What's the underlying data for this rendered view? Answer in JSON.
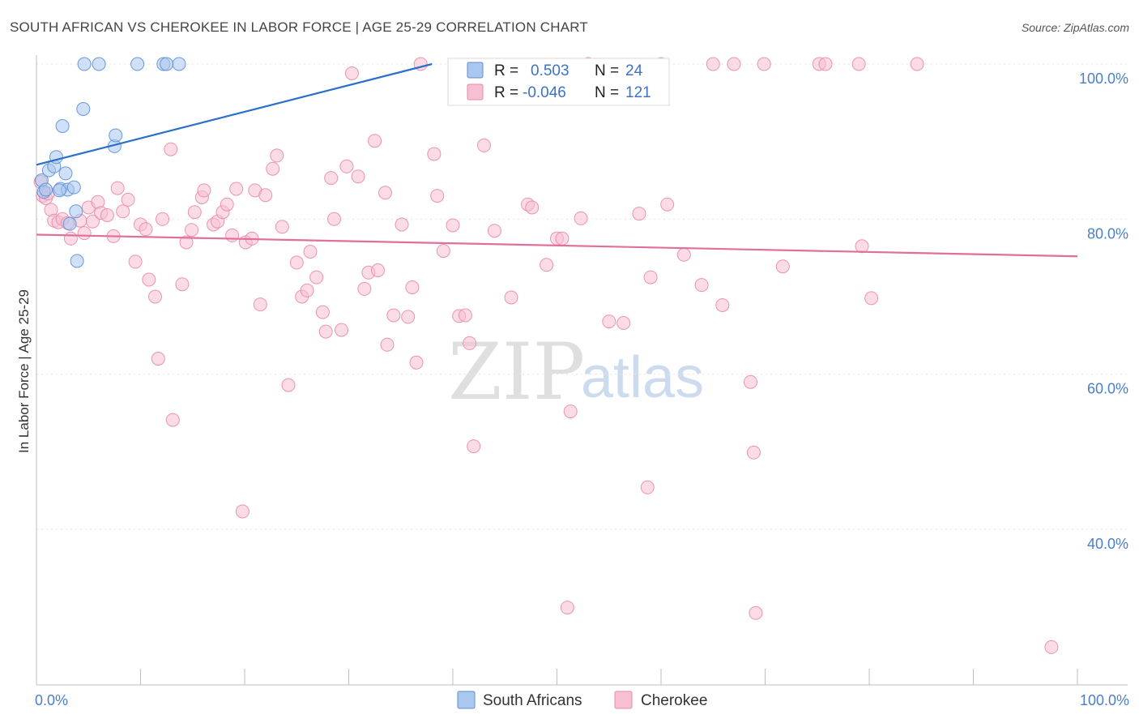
{
  "title": "SOUTH AFRICAN VS CHEROKEE IN LABOR FORCE | AGE 25-29 CORRELATION CHART",
  "source": "Source: ZipAtlas.com",
  "watermark": {
    "zip": "ZIP",
    "atlas": "atlas"
  },
  "chart_data": {
    "type": "scatter",
    "title": "SOUTH AFRICAN VS CHEROKEE IN LABOR FORCE | AGE 25-29 CORRELATION CHART",
    "xlabel": "",
    "ylabel": "In Labor Force | Age 25-29",
    "xlim": [
      0,
      100
    ],
    "ylim": [
      20,
      102
    ],
    "y_ticks": [
      40,
      60,
      80,
      100
    ],
    "y_tick_labels": [
      "40.0%",
      "60.0%",
      "80.0%",
      "100.0%"
    ],
    "x_tick_labels": [
      "0.0%",
      "100.0%"
    ],
    "legend": {
      "entries": [
        {
          "name": "South Africans",
          "r_label": "R =",
          "r_value": "0.503",
          "n_label": "N =",
          "n_value": "24"
        },
        {
          "name": "Cherokee",
          "r_label": "R =",
          "r_value": "-0.046",
          "n_label": "N =",
          "n_value": "121"
        }
      ]
    },
    "series": [
      {
        "name": "South Africans",
        "color": "#a9c7ef",
        "edge": "#5c8fd6",
        "line_color": "#2a6fc9",
        "trend": [
          [
            0,
            87.0
          ],
          [
            38,
            100.0
          ]
        ],
        "points": [
          [
            0.5,
            85.0
          ],
          [
            0.7,
            83.5
          ],
          [
            1.2,
            86.3
          ],
          [
            1.7,
            86.8
          ],
          [
            1.9,
            88.0
          ],
          [
            2.3,
            83.9
          ],
          [
            2.5,
            92.0
          ],
          [
            2.8,
            85.9
          ],
          [
            3.0,
            83.8
          ],
          [
            3.2,
            79.4
          ],
          [
            3.6,
            84.1
          ],
          [
            3.8,
            81.0
          ],
          [
            3.9,
            74.6
          ],
          [
            4.5,
            94.2
          ],
          [
            4.6,
            100.0
          ],
          [
            6.0,
            100.0
          ],
          [
            7.5,
            89.4
          ],
          [
            7.6,
            90.8
          ],
          [
            9.7,
            100.0
          ],
          [
            12.2,
            100.0
          ],
          [
            13.7,
            100.0
          ],
          [
            12.5,
            100.0
          ],
          [
            0.9,
            83.8
          ],
          [
            2.2,
            83.7
          ]
        ]
      },
      {
        "name": "Cherokee",
        "color": "#f7bfd2",
        "edge": "#e889aa",
        "line_color": "#e06f9a",
        "trend": [
          [
            0,
            78.0
          ],
          [
            100,
            75.2
          ]
        ],
        "points": [
          [
            0.4,
            84.8
          ],
          [
            0.6,
            83.0
          ],
          [
            0.9,
            82.7
          ],
          [
            1.1,
            83.3
          ],
          [
            1.4,
            81.2
          ],
          [
            1.7,
            79.8
          ],
          [
            2.1,
            79.6
          ],
          [
            2.5,
            80.0
          ],
          [
            3.0,
            79.5
          ],
          [
            3.3,
            77.5
          ],
          [
            4.2,
            79.8
          ],
          [
            4.6,
            78.2
          ],
          [
            5.0,
            81.5
          ],
          [
            5.4,
            79.7
          ],
          [
            5.9,
            82.2
          ],
          [
            6.2,
            80.8
          ],
          [
            6.8,
            80.5
          ],
          [
            7.4,
            77.8
          ],
          [
            7.8,
            84.0
          ],
          [
            8.3,
            81.0
          ],
          [
            8.8,
            82.5
          ],
          [
            9.5,
            74.5
          ],
          [
            10.0,
            79.3
          ],
          [
            10.5,
            78.7
          ],
          [
            10.8,
            72.2
          ],
          [
            11.4,
            70.0
          ],
          [
            11.7,
            62.0
          ],
          [
            12.1,
            80.0
          ],
          [
            12.9,
            89.0
          ],
          [
            13.1,
            54.1
          ],
          [
            14.0,
            71.6
          ],
          [
            14.4,
            77.0
          ],
          [
            14.9,
            78.6
          ],
          [
            15.2,
            80.9
          ],
          [
            15.9,
            82.8
          ],
          [
            16.1,
            83.7
          ],
          [
            17.0,
            79.3
          ],
          [
            17.4,
            79.7
          ],
          [
            17.9,
            80.9
          ],
          [
            18.3,
            81.9
          ],
          [
            18.8,
            77.9
          ],
          [
            19.2,
            83.9
          ],
          [
            19.8,
            42.3
          ],
          [
            20.1,
            77.0
          ],
          [
            20.7,
            77.5
          ],
          [
            21.0,
            83.7
          ],
          [
            21.5,
            69.0
          ],
          [
            22.0,
            83.1
          ],
          [
            22.7,
            86.5
          ],
          [
            23.1,
            88.2
          ],
          [
            23.6,
            79.0
          ],
          [
            24.2,
            58.6
          ],
          [
            25.0,
            74.4
          ],
          [
            25.5,
            70.0
          ],
          [
            26.0,
            70.8
          ],
          [
            26.3,
            75.8
          ],
          [
            26.9,
            72.5
          ],
          [
            27.5,
            68.0
          ],
          [
            27.8,
            65.5
          ],
          [
            28.3,
            85.3
          ],
          [
            28.6,
            80.0
          ],
          [
            29.3,
            65.7
          ],
          [
            29.8,
            86.8
          ],
          [
            30.3,
            98.8
          ],
          [
            30.9,
            85.5
          ],
          [
            31.5,
            71.0
          ],
          [
            31.9,
            73.1
          ],
          [
            32.5,
            90.1
          ],
          [
            32.8,
            73.4
          ],
          [
            33.5,
            83.4
          ],
          [
            33.7,
            63.8
          ],
          [
            34.3,
            67.6
          ],
          [
            35.1,
            79.3
          ],
          [
            35.7,
            67.4
          ],
          [
            36.1,
            71.2
          ],
          [
            36.5,
            61.5
          ],
          [
            36.9,
            100.0
          ],
          [
            38.2,
            88.4
          ],
          [
            38.5,
            83.0
          ],
          [
            39.1,
            75.9
          ],
          [
            40.0,
            79.2
          ],
          [
            40.6,
            67.5
          ],
          [
            41.2,
            67.6
          ],
          [
            41.6,
            64.0
          ],
          [
            42.0,
            50.7
          ],
          [
            43.0,
            89.5
          ],
          [
            44.0,
            78.5
          ],
          [
            45.6,
            69.9
          ],
          [
            47.2,
            81.9
          ],
          [
            47.6,
            81.5
          ],
          [
            49.0,
            74.1
          ],
          [
            50.0,
            77.5
          ],
          [
            50.5,
            77.5
          ],
          [
            51.0,
            29.9
          ],
          [
            51.3,
            55.2
          ],
          [
            52.3,
            80.1
          ],
          [
            53.0,
            100.0
          ],
          [
            55.0,
            66.8
          ],
          [
            56.4,
            66.6
          ],
          [
            57.9,
            80.7
          ],
          [
            58.7,
            45.4
          ],
          [
            59.0,
            72.5
          ],
          [
            60.0,
            100.0
          ],
          [
            60.6,
            81.9
          ],
          [
            62.2,
            75.4
          ],
          [
            63.9,
            71.5
          ],
          [
            65.0,
            100.0
          ],
          [
            65.9,
            68.9
          ],
          [
            67.0,
            100.0
          ],
          [
            68.6,
            59.0
          ],
          [
            69.1,
            29.2
          ],
          [
            68.9,
            49.9
          ],
          [
            69.9,
            100.0
          ],
          [
            71.7,
            73.9
          ],
          [
            75.2,
            100.0
          ],
          [
            75.8,
            100.0
          ],
          [
            79.0,
            100.0
          ],
          [
            79.3,
            76.5
          ],
          [
            80.2,
            69.8
          ],
          [
            84.6,
            100.0
          ],
          [
            97.5,
            24.8
          ]
        ]
      }
    ]
  }
}
